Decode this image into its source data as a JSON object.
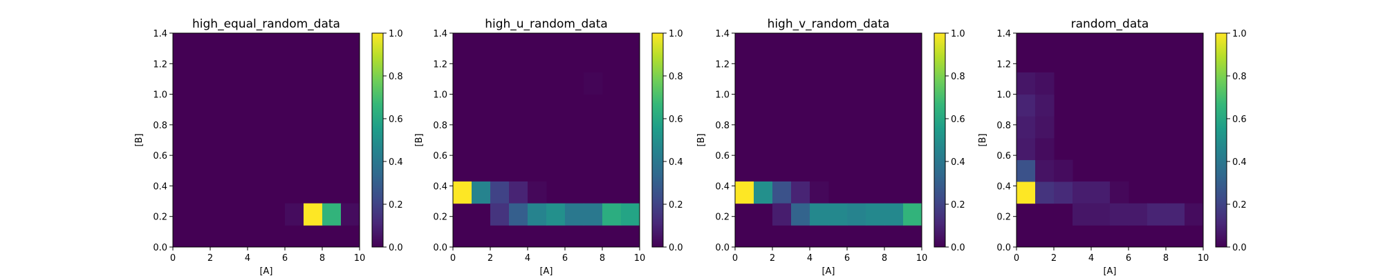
{
  "colormap": {
    "name": "viridis",
    "stops": [
      "#440154",
      "#482878",
      "#3e4a89",
      "#31688e",
      "#26828e",
      "#1f9e89",
      "#35b779",
      "#6ece58",
      "#b5de2b",
      "#fde725"
    ]
  },
  "chart_data": [
    {
      "type": "heatmap",
      "title": "high_equal_random_data",
      "xlabel": "[A]",
      "ylabel": "[B]",
      "xlim": [
        0,
        10
      ],
      "ylim": [
        0,
        1.4
      ],
      "x_ticks": [
        "0",
        "2",
        "4",
        "6",
        "8",
        "10"
      ],
      "y_ticks": [
        "0.0",
        "0.2",
        "0.4",
        "0.6",
        "0.8",
        "1.0",
        "1.2",
        "1.4"
      ],
      "colorbar_ticks": [
        "0.0",
        "0.2",
        "0.4",
        "0.6",
        "0.8",
        "1.0"
      ],
      "colorbar_range": [
        0,
        1
      ],
      "x_bin_width": 1,
      "y_bins": [
        0,
        0.143,
        0.286,
        0.429,
        0.571,
        0.714,
        0.857,
        1.0,
        1.143,
        1.286,
        1.4
      ],
      "cells": [
        {
          "x": 6,
          "y": 0.143,
          "value": 0.03
        },
        {
          "x": 7,
          "y": 0.143,
          "value": 1.0
        },
        {
          "x": 8,
          "y": 0.143,
          "value": 0.65
        },
        {
          "x": 9,
          "y": 0.143,
          "value": 0.03
        }
      ]
    },
    {
      "type": "heatmap",
      "title": "high_u_random_data",
      "xlabel": "[A]",
      "ylabel": "[B]",
      "xlim": [
        0,
        10
      ],
      "ylim": [
        0,
        1.4
      ],
      "x_ticks": [
        "0",
        "2",
        "4",
        "6",
        "8",
        "10"
      ],
      "y_ticks": [
        "0.0",
        "0.2",
        "0.4",
        "0.6",
        "0.8",
        "1.0",
        "1.2",
        "1.4"
      ],
      "colorbar_ticks": [
        "0.0",
        "0.2",
        "0.4",
        "0.6",
        "0.8",
        "1.0"
      ],
      "colorbar_range": [
        0,
        1
      ],
      "x_bin_width": 1,
      "y_bins": [
        0,
        0.143,
        0.286,
        0.429,
        0.571,
        0.714,
        0.857,
        1.0,
        1.143,
        1.286,
        1.4
      ],
      "cells": [
        {
          "x": 0,
          "y": 0.286,
          "value": 1.0
        },
        {
          "x": 1,
          "y": 0.286,
          "value": 0.45
        },
        {
          "x": 2,
          "y": 0.286,
          "value": 0.2
        },
        {
          "x": 3,
          "y": 0.286,
          "value": 0.1
        },
        {
          "x": 4,
          "y": 0.286,
          "value": 0.02
        },
        {
          "x": 2,
          "y": 0.143,
          "value": 0.15
        },
        {
          "x": 3,
          "y": 0.143,
          "value": 0.3
        },
        {
          "x": 4,
          "y": 0.143,
          "value": 0.45
        },
        {
          "x": 5,
          "y": 0.143,
          "value": 0.5
        },
        {
          "x": 6,
          "y": 0.143,
          "value": 0.4
        },
        {
          "x": 7,
          "y": 0.143,
          "value": 0.4
        },
        {
          "x": 8,
          "y": 0.143,
          "value": 0.62
        },
        {
          "x": 9,
          "y": 0.143,
          "value": 0.58
        },
        {
          "x": 7,
          "y": 1.0,
          "value": 0.01
        }
      ]
    },
    {
      "type": "heatmap",
      "title": "high_v_random_data",
      "xlabel": "[A]",
      "ylabel": "[B]",
      "xlim": [
        0,
        10
      ],
      "ylim": [
        0,
        1.4
      ],
      "x_ticks": [
        "0",
        "2",
        "4",
        "6",
        "8",
        "10"
      ],
      "y_ticks": [
        "0.0",
        "0.2",
        "0.4",
        "0.6",
        "0.8",
        "1.0",
        "1.2",
        "1.4"
      ],
      "colorbar_ticks": [
        "0.0",
        "0.2",
        "0.4",
        "0.6",
        "0.8",
        "1.0"
      ],
      "colorbar_range": [
        0,
        1
      ],
      "x_bin_width": 1,
      "y_bins": [
        0,
        0.143,
        0.286,
        0.429,
        0.571,
        0.714,
        0.857,
        1.0,
        1.143,
        1.286,
        1.4
      ],
      "cells": [
        {
          "x": 0,
          "y": 0.286,
          "value": 1.0
        },
        {
          "x": 1,
          "y": 0.286,
          "value": 0.5
        },
        {
          "x": 2,
          "y": 0.286,
          "value": 0.25
        },
        {
          "x": 3,
          "y": 0.286,
          "value": 0.1
        },
        {
          "x": 4,
          "y": 0.286,
          "value": 0.02
        },
        {
          "x": 2,
          "y": 0.143,
          "value": 0.08
        },
        {
          "x": 3,
          "y": 0.143,
          "value": 0.32
        },
        {
          "x": 4,
          "y": 0.143,
          "value": 0.47
        },
        {
          "x": 5,
          "y": 0.143,
          "value": 0.47
        },
        {
          "x": 6,
          "y": 0.143,
          "value": 0.45
        },
        {
          "x": 7,
          "y": 0.143,
          "value": 0.47
        },
        {
          "x": 8,
          "y": 0.143,
          "value": 0.47
        },
        {
          "x": 9,
          "y": 0.143,
          "value": 0.65
        }
      ]
    },
    {
      "type": "heatmap",
      "title": "random_data",
      "xlabel": "[A]",
      "ylabel": "[B]",
      "xlim": [
        0,
        10
      ],
      "ylim": [
        0,
        1.4
      ],
      "x_ticks": [
        "0",
        "2",
        "4",
        "6",
        "8",
        "10"
      ],
      "y_ticks": [
        "0.0",
        "0.2",
        "0.4",
        "0.6",
        "0.8",
        "1.0",
        "1.2",
        "1.4"
      ],
      "colorbar_ticks": [
        "0.0",
        "0.2",
        "0.4",
        "0.6",
        "0.8",
        "1.0"
      ],
      "colorbar_range": [
        0,
        1
      ],
      "x_bin_width": 1,
      "y_bins": [
        0,
        0.143,
        0.286,
        0.429,
        0.571,
        0.714,
        0.857,
        1.0,
        1.143,
        1.286,
        1.4
      ],
      "cells": [
        {
          "x": 0,
          "y": 0.286,
          "value": 1.0
        },
        {
          "x": 1,
          "y": 0.286,
          "value": 0.15
        },
        {
          "x": 2,
          "y": 0.286,
          "value": 0.12
        },
        {
          "x": 3,
          "y": 0.286,
          "value": 0.08
        },
        {
          "x": 4,
          "y": 0.286,
          "value": 0.08
        },
        {
          "x": 5,
          "y": 0.286,
          "value": 0.02
        },
        {
          "x": 0,
          "y": 0.429,
          "value": 0.25
        },
        {
          "x": 1,
          "y": 0.429,
          "value": 0.05
        },
        {
          "x": 2,
          "y": 0.429,
          "value": 0.03
        },
        {
          "x": 0,
          "y": 0.571,
          "value": 0.07
        },
        {
          "x": 1,
          "y": 0.571,
          "value": 0.03
        },
        {
          "x": 0,
          "y": 0.714,
          "value": 0.08
        },
        {
          "x": 1,
          "y": 0.714,
          "value": 0.05
        },
        {
          "x": 0,
          "y": 0.857,
          "value": 0.1
        },
        {
          "x": 1,
          "y": 0.857,
          "value": 0.06
        },
        {
          "x": 0,
          "y": 1.0,
          "value": 0.06
        },
        {
          "x": 1,
          "y": 1.0,
          "value": 0.04
        },
        {
          "x": 3,
          "y": 0.143,
          "value": 0.06
        },
        {
          "x": 4,
          "y": 0.143,
          "value": 0.06
        },
        {
          "x": 5,
          "y": 0.143,
          "value": 0.07
        },
        {
          "x": 6,
          "y": 0.143,
          "value": 0.07
        },
        {
          "x": 7,
          "y": 0.143,
          "value": 0.1
        },
        {
          "x": 8,
          "y": 0.143,
          "value": 0.1
        },
        {
          "x": 9,
          "y": 0.143,
          "value": 0.03
        }
      ]
    }
  ]
}
